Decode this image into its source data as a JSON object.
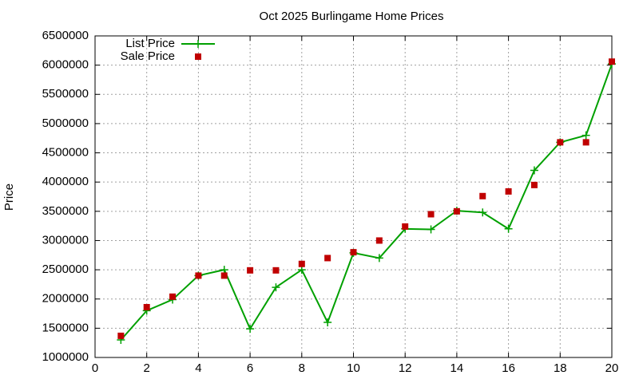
{
  "chart_data": {
    "type": "line",
    "title": "Oct 2025 Burlingame Home Prices",
    "y_label": "Price",
    "x": [
      1,
      2,
      3,
      4,
      5,
      6,
      7,
      8,
      9,
      10,
      11,
      12,
      13,
      14,
      15,
      16,
      17,
      18,
      19,
      20
    ],
    "series": [
      {
        "name": "List Price",
        "color": "#00a000",
        "style": "linespoints",
        "values": [
          1300000,
          1800000,
          1990000,
          2400000,
          2500000,
          1490000,
          2200000,
          2500000,
          1600000,
          2790000,
          2700000,
          3200000,
          3190000,
          3510000,
          3480000,
          3200000,
          4200000,
          4680000,
          4800000,
          6020000
        ]
      },
      {
        "name": "Sale Price",
        "color": "#c00000",
        "style": "points",
        "values": [
          1370000,
          1860000,
          2040000,
          2400000,
          2400000,
          2490000,
          2490000,
          2600000,
          2700000,
          2800000,
          3000000,
          3240000,
          3450000,
          3500000,
          3760000,
          3840000,
          3950000,
          4680000,
          4680000,
          6060000
        ]
      }
    ],
    "xlim": [
      0,
      20
    ],
    "xticks": [
      0,
      2,
      4,
      6,
      8,
      10,
      12,
      14,
      16,
      18,
      20
    ],
    "ylim": [
      1000000,
      6500000
    ],
    "yticks": [
      1000000,
      1500000,
      2000000,
      2500000,
      3000000,
      3500000,
      4000000,
      4500000,
      5000000,
      5500000,
      6000000,
      6500000
    ],
    "grid": true,
    "legend": "top-left"
  }
}
